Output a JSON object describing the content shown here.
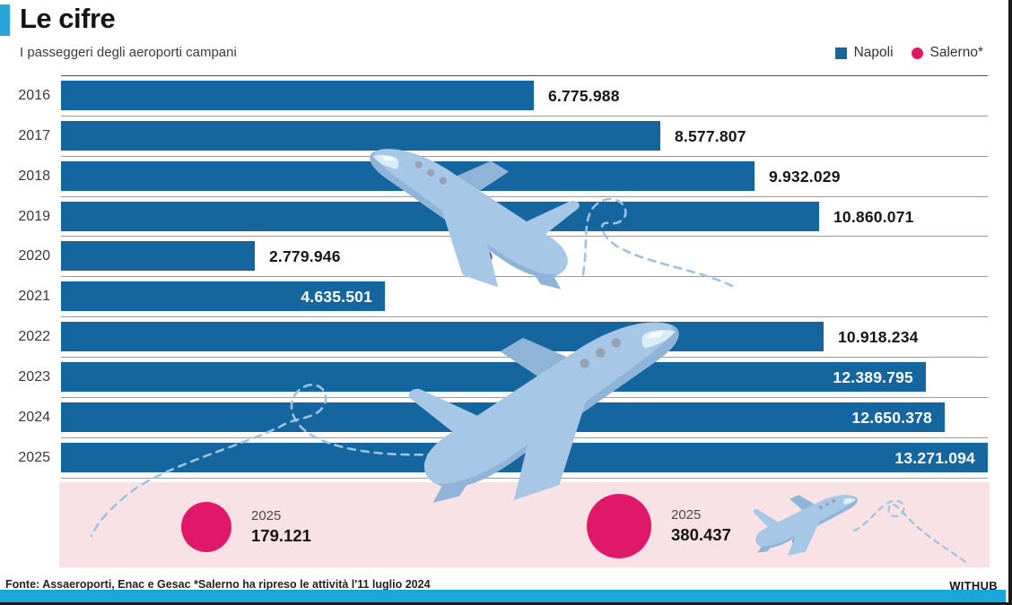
{
  "header": {
    "title": "Le cifre",
    "subtitle": "I passeggeri degli aeroporti campani"
  },
  "legend": [
    {
      "label": "Napoli",
      "color": "#15659e",
      "shape": "square"
    },
    {
      "label": "Salerno*",
      "color": "#e0186a",
      "shape": "circle"
    }
  ],
  "chart_data": {
    "type": "bar",
    "orientation": "horizontal",
    "title": "I passeggeri degli aeroporti campani",
    "xlabel": "",
    "ylabel": "",
    "xlim": [
      0,
      13271094
    ],
    "grid": "row-separator-lines",
    "legend_position": "top-right",
    "categories": [
      "2016",
      "2017",
      "2018",
      "2019",
      "2020",
      "2021",
      "2022",
      "2023",
      "2024",
      "2025"
    ],
    "series": [
      {
        "name": "Napoli",
        "color": "#15659e",
        "values": [
          6775988,
          8577807,
          9932029,
          10860071,
          2779946,
          4635501,
          10918234,
          12389795,
          12650378,
          13271094
        ]
      }
    ],
    "rows": [
      {
        "year": "2016",
        "value": 6775988,
        "label": "6.775.988",
        "label_position": "outside"
      },
      {
        "year": "2017",
        "value": 8577807,
        "label": "8.577.807",
        "label_position": "outside"
      },
      {
        "year": "2018",
        "value": 9932029,
        "label": "9.932.029",
        "label_position": "outside"
      },
      {
        "year": "2019",
        "value": 10860071,
        "label": "10.860.071",
        "label_position": "outside"
      },
      {
        "year": "2020",
        "value": 2779946,
        "label": "2.779.946",
        "label_position": "outside"
      },
      {
        "year": "2021",
        "value": 4635501,
        "label": "4.635.501",
        "label_position": "inside"
      },
      {
        "year": "2022",
        "value": 10918234,
        "label": "10.918.234",
        "label_position": "outside"
      },
      {
        "year": "2023",
        "value": 12389795,
        "label": "12.389.795",
        "label_position": "inside"
      },
      {
        "year": "2024",
        "value": 12650378,
        "label": "12.650.378",
        "label_position": "inside"
      },
      {
        "year": "2025",
        "value": 13271094,
        "label": "13.271.094",
        "label_position": "inside"
      }
    ],
    "secondary_series": {
      "name": "Salerno",
      "color": "#e0186a",
      "points": [
        {
          "year": "2025",
          "value": 179121,
          "label": "179.121"
        },
        {
          "year": "2025",
          "value": 380437,
          "label": "380.437"
        }
      ]
    }
  },
  "salerno": {
    "items": [
      {
        "year": "2025",
        "value": "179.121"
      },
      {
        "year": "2025",
        "value": "380.437"
      }
    ]
  },
  "footer": {
    "source": "Fonte: Assaeroporti, Enac e Gesac *Salerno ha ripreso le attività l'11 luglio 2024",
    "brand": "WITHUB"
  },
  "colors": {
    "bar_blue": "#15659e",
    "salerno_pink": "#e0186a",
    "panel_pink": "#f8e2e6",
    "accent_cyan": "#2aa5d8",
    "strip_cyan": "#19a7da",
    "plane_blue": "#a6c7e5",
    "gridline_gray": "#9b9b9b"
  }
}
